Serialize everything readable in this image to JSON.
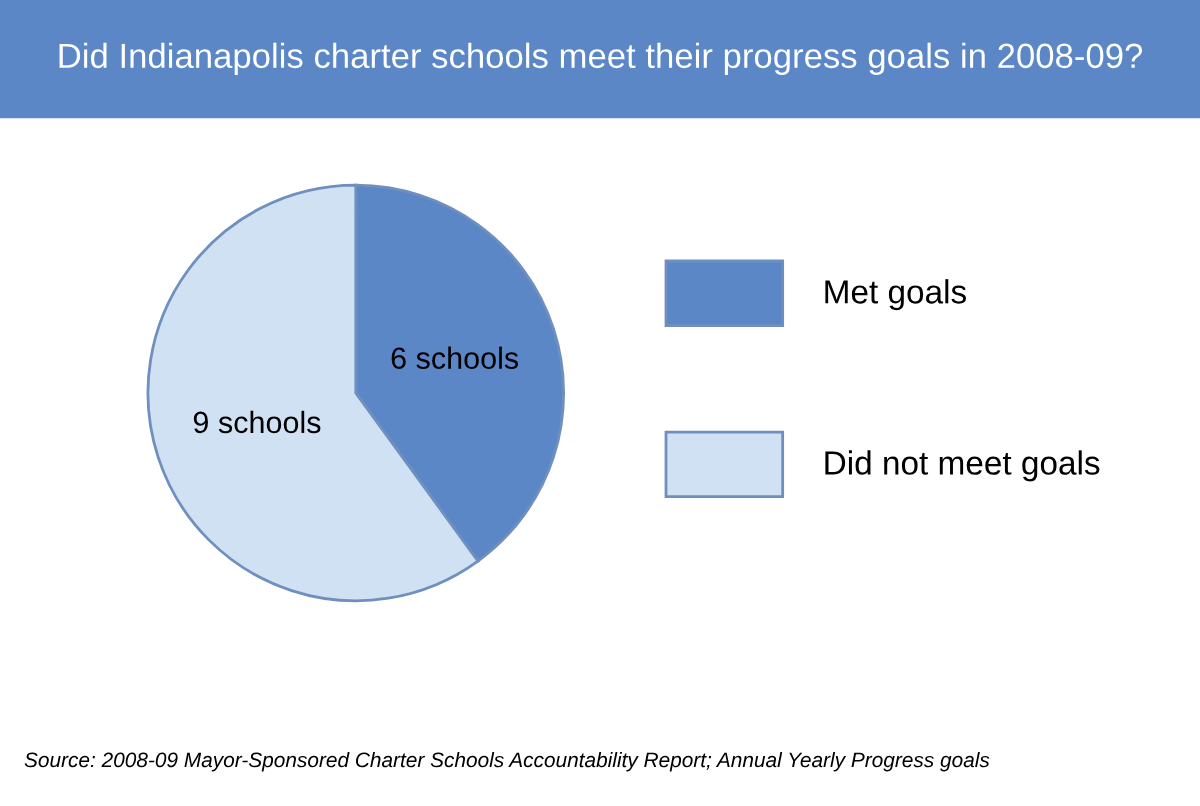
{
  "chart_data": {
    "type": "pie",
    "title": "Did Indianapolis charter schools meet their progress goals in 2008-09?",
    "categories": [
      "Met goals",
      "Did not meet goals"
    ],
    "values": [
      6,
      9
    ],
    "value_labels": [
      "6 schools",
      "9 schools"
    ],
    "colors": [
      "#5b87c7",
      "#d0e1f4"
    ],
    "legend": "right",
    "annotations": [
      "Source: 2008-09 Mayor-Sponsored Charter Schools Accountability Report; Annual Yearly Progress goals"
    ]
  }
}
